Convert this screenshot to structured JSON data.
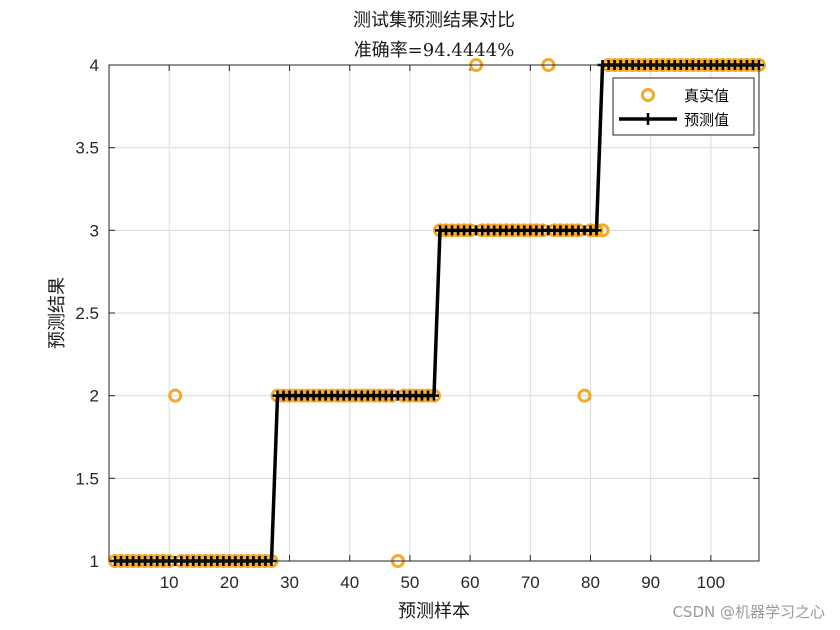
{
  "chart_data": {
    "type": "line",
    "title": "测试集预测结果对比",
    "subtitle": "准确率=94.4444%",
    "xlabel": "预测样本",
    "ylabel": "预测结果",
    "xlim": [
      0,
      108
    ],
    "ylim": [
      1,
      4
    ],
    "xticks": [
      10,
      20,
      30,
      40,
      50,
      60,
      70,
      80,
      90,
      100
    ],
    "yticks": [
      1,
      1.5,
      2,
      2.5,
      3,
      3.5,
      4
    ],
    "grid": true,
    "legend_position": "top-right",
    "series": [
      {
        "name": "真实值",
        "marker": "circle",
        "color": "#f4a92a",
        "x": [
          1,
          2,
          3,
          4,
          5,
          6,
          7,
          8,
          9,
          10,
          11,
          12,
          13,
          14,
          15,
          16,
          17,
          18,
          19,
          20,
          21,
          22,
          23,
          24,
          25,
          26,
          27,
          28,
          29,
          30,
          31,
          32,
          33,
          34,
          35,
          36,
          37,
          38,
          39,
          40,
          41,
          42,
          43,
          44,
          45,
          46,
          47,
          48,
          49,
          50,
          51,
          52,
          53,
          54,
          55,
          56,
          57,
          58,
          59,
          60,
          61,
          62,
          63,
          64,
          65,
          66,
          67,
          68,
          69,
          70,
          71,
          72,
          73,
          74,
          75,
          76,
          77,
          78,
          79,
          80,
          81,
          82,
          83,
          84,
          85,
          86,
          87,
          88,
          89,
          90,
          91,
          92,
          93,
          94,
          95,
          96,
          97,
          98,
          99,
          100,
          101,
          102,
          103,
          104,
          105,
          106,
          107,
          108
        ],
        "y": [
          1,
          1,
          1,
          1,
          1,
          1,
          1,
          1,
          1,
          1,
          2,
          1,
          1,
          1,
          1,
          1,
          1,
          1,
          1,
          1,
          1,
          1,
          1,
          1,
          1,
          1,
          1,
          2,
          2,
          2,
          2,
          2,
          2,
          2,
          2,
          2,
          2,
          2,
          2,
          2,
          2,
          2,
          2,
          2,
          2,
          2,
          2,
          1,
          2,
          2,
          2,
          2,
          2,
          2,
          3,
          3,
          3,
          3,
          3,
          3,
          4,
          3,
          3,
          3,
          3,
          3,
          3,
          3,
          3,
          3,
          3,
          3,
          4,
          3,
          3,
          3,
          3,
          3,
          2,
          3,
          3,
          3,
          4,
          4,
          4,
          4,
          4,
          4,
          4,
          4,
          4,
          4,
          4,
          4,
          4,
          4,
          4,
          4,
          4,
          4,
          4,
          4,
          4,
          4,
          4,
          4,
          4,
          4
        ]
      },
      {
        "name": "预测值",
        "marker": "plus",
        "color": "#000000",
        "x": [
          1,
          2,
          3,
          4,
          5,
          6,
          7,
          8,
          9,
          10,
          11,
          12,
          13,
          14,
          15,
          16,
          17,
          18,
          19,
          20,
          21,
          22,
          23,
          24,
          25,
          26,
          27,
          28,
          29,
          30,
          31,
          32,
          33,
          34,
          35,
          36,
          37,
          38,
          39,
          40,
          41,
          42,
          43,
          44,
          45,
          46,
          47,
          48,
          49,
          50,
          51,
          52,
          53,
          54,
          55,
          56,
          57,
          58,
          59,
          60,
          61,
          62,
          63,
          64,
          65,
          66,
          67,
          68,
          69,
          70,
          71,
          72,
          73,
          74,
          75,
          76,
          77,
          78,
          79,
          80,
          81,
          82,
          83,
          84,
          85,
          86,
          87,
          88,
          89,
          90,
          91,
          92,
          93,
          94,
          95,
          96,
          97,
          98,
          99,
          100,
          101,
          102,
          103,
          104,
          105,
          106,
          107,
          108
        ],
        "y": [
          1,
          1,
          1,
          1,
          1,
          1,
          1,
          1,
          1,
          1,
          1,
          1,
          1,
          1,
          1,
          1,
          1,
          1,
          1,
          1,
          1,
          1,
          1,
          1,
          1,
          1,
          1,
          2,
          2,
          2,
          2,
          2,
          2,
          2,
          2,
          2,
          2,
          2,
          2,
          2,
          2,
          2,
          2,
          2,
          2,
          2,
          2,
          2,
          2,
          2,
          2,
          2,
          2,
          2,
          3,
          3,
          3,
          3,
          3,
          3,
          3,
          3,
          3,
          3,
          3,
          3,
          3,
          3,
          3,
          3,
          3,
          3,
          3,
          3,
          3,
          3,
          3,
          3,
          3,
          3,
          3,
          4,
          4,
          4,
          4,
          4,
          4,
          4,
          4,
          4,
          4,
          4,
          4,
          4,
          4,
          4,
          4,
          4,
          4,
          4,
          4,
          4,
          4,
          4,
          4,
          4,
          4,
          4
        ]
      }
    ],
    "watermark": "CSDN @机器学习之心"
  }
}
